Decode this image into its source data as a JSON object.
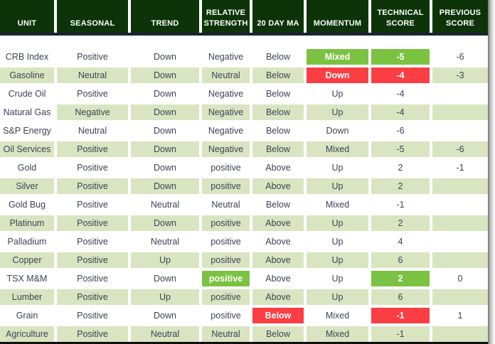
{
  "table_name": "Technical Score Table",
  "columns": [
    {
      "id": "unit",
      "label": "UNIT"
    },
    {
      "id": "seasonal",
      "label": "SEASONAL"
    },
    {
      "id": "trend",
      "label": "TREND"
    },
    {
      "id": "rel-strength",
      "label": "RELATIVE STRENGTH"
    },
    {
      "id": "20-day-ma",
      "label": "20 DAY MA"
    },
    {
      "id": "momentum",
      "label": "MOMENTUM"
    },
    {
      "id": "tech-score",
      "label": "TECHNICAL SCORE"
    },
    {
      "id": "prev-score",
      "label": "PREVIOUS SCORE"
    }
  ],
  "rows": [
    {
      "shade": "white",
      "cells": [
        "CRB Index",
        "Positive",
        "Down",
        "Negative",
        "Below",
        "Mixed",
        "-5",
        "-6"
      ],
      "highlights": {
        "5": "green",
        "6": "green"
      }
    },
    {
      "shade": "green",
      "cells": [
        "Gasoline",
        "Neutral",
        "Down",
        "Neutral",
        "Below",
        "Down",
        "-4",
        "-3"
      ],
      "highlights": {
        "5": "red",
        "6": "red"
      }
    },
    {
      "shade": "white",
      "cells": [
        "Crude Oil",
        "Positive",
        "Down",
        "Negative",
        "Below",
        "Up",
        "-4",
        ""
      ],
      "highlights": {}
    },
    {
      "shade": "green",
      "cells": [
        "Natural Gas",
        "Negative",
        "Down",
        "Negative",
        "Below",
        "Up",
        "-4",
        ""
      ],
      "highlights": {
        "0": "white"
      }
    },
    {
      "shade": "white",
      "cells": [
        "S&P Energy",
        "Neutral",
        "Down",
        "Negative",
        "Below",
        "Down",
        "-6",
        ""
      ],
      "highlights": {}
    },
    {
      "shade": "green",
      "cells": [
        "Oil Services",
        "Positive",
        "Down",
        "Negative",
        "Below",
        "Mixed",
        "-5",
        "-6"
      ],
      "highlights": {}
    },
    {
      "shade": "white",
      "cells": [
        "Gold",
        "Positive",
        "Down",
        "positive",
        "Above",
        "Up",
        "2",
        "-1"
      ],
      "highlights": {}
    },
    {
      "shade": "green",
      "cells": [
        "Silver",
        "Positive",
        "Down",
        "positive",
        "Above",
        "Up",
        "2",
        ""
      ],
      "highlights": {}
    },
    {
      "shade": "white",
      "cells": [
        "Gold Bug",
        "Positive",
        "Neutral",
        "Neutral",
        "Below",
        "Mixed",
        "-1",
        ""
      ],
      "highlights": {}
    },
    {
      "shade": "green",
      "cells": [
        "Platinum",
        "Positive",
        "Down",
        "positive",
        "Above",
        "Up",
        "2",
        ""
      ],
      "highlights": {}
    },
    {
      "shade": "white",
      "cells": [
        "Palladium",
        "Positive",
        "Neutral",
        "positive",
        "Above",
        "Up",
        "4",
        ""
      ],
      "highlights": {}
    },
    {
      "shade": "green",
      "cells": [
        "Copper",
        "Positive",
        "Up",
        "positive",
        "Above",
        "Up",
        "6",
        ""
      ],
      "highlights": {}
    },
    {
      "shade": "white",
      "cells": [
        "TSX M&M",
        "Positive",
        "Down",
        "positive",
        "Above",
        "Up",
        "2",
        "0"
      ],
      "highlights": {
        "3": "green",
        "6": "green"
      }
    },
    {
      "shade": "green",
      "cells": [
        "Lumber",
        "Positive",
        "Up",
        "positive",
        "Above",
        "Up",
        "6",
        ""
      ],
      "highlights": {}
    },
    {
      "shade": "white",
      "cells": [
        "Grain",
        "Positive",
        "Down",
        "positive",
        "Below",
        "Mixed",
        "-1",
        "1"
      ],
      "highlights": {
        "4": "red",
        "6": "red"
      }
    },
    {
      "shade": "green",
      "cells": [
        "Agriculture",
        "Positive",
        "Neutral",
        "Neutral",
        "Below",
        "Mixed",
        "-1",
        ""
      ],
      "highlights": {}
    }
  ],
  "colors": {
    "header_bg": "#0c3408",
    "header_text": "#ffffff",
    "row_green": "#d9e5c1",
    "row_white": "#ffffff",
    "highlight_green": "#7cc242",
    "highlight_red": "#fb3e43",
    "cell_text": "#3d4254",
    "header_underline": "#1d2233",
    "bottom_border": "#111111"
  }
}
